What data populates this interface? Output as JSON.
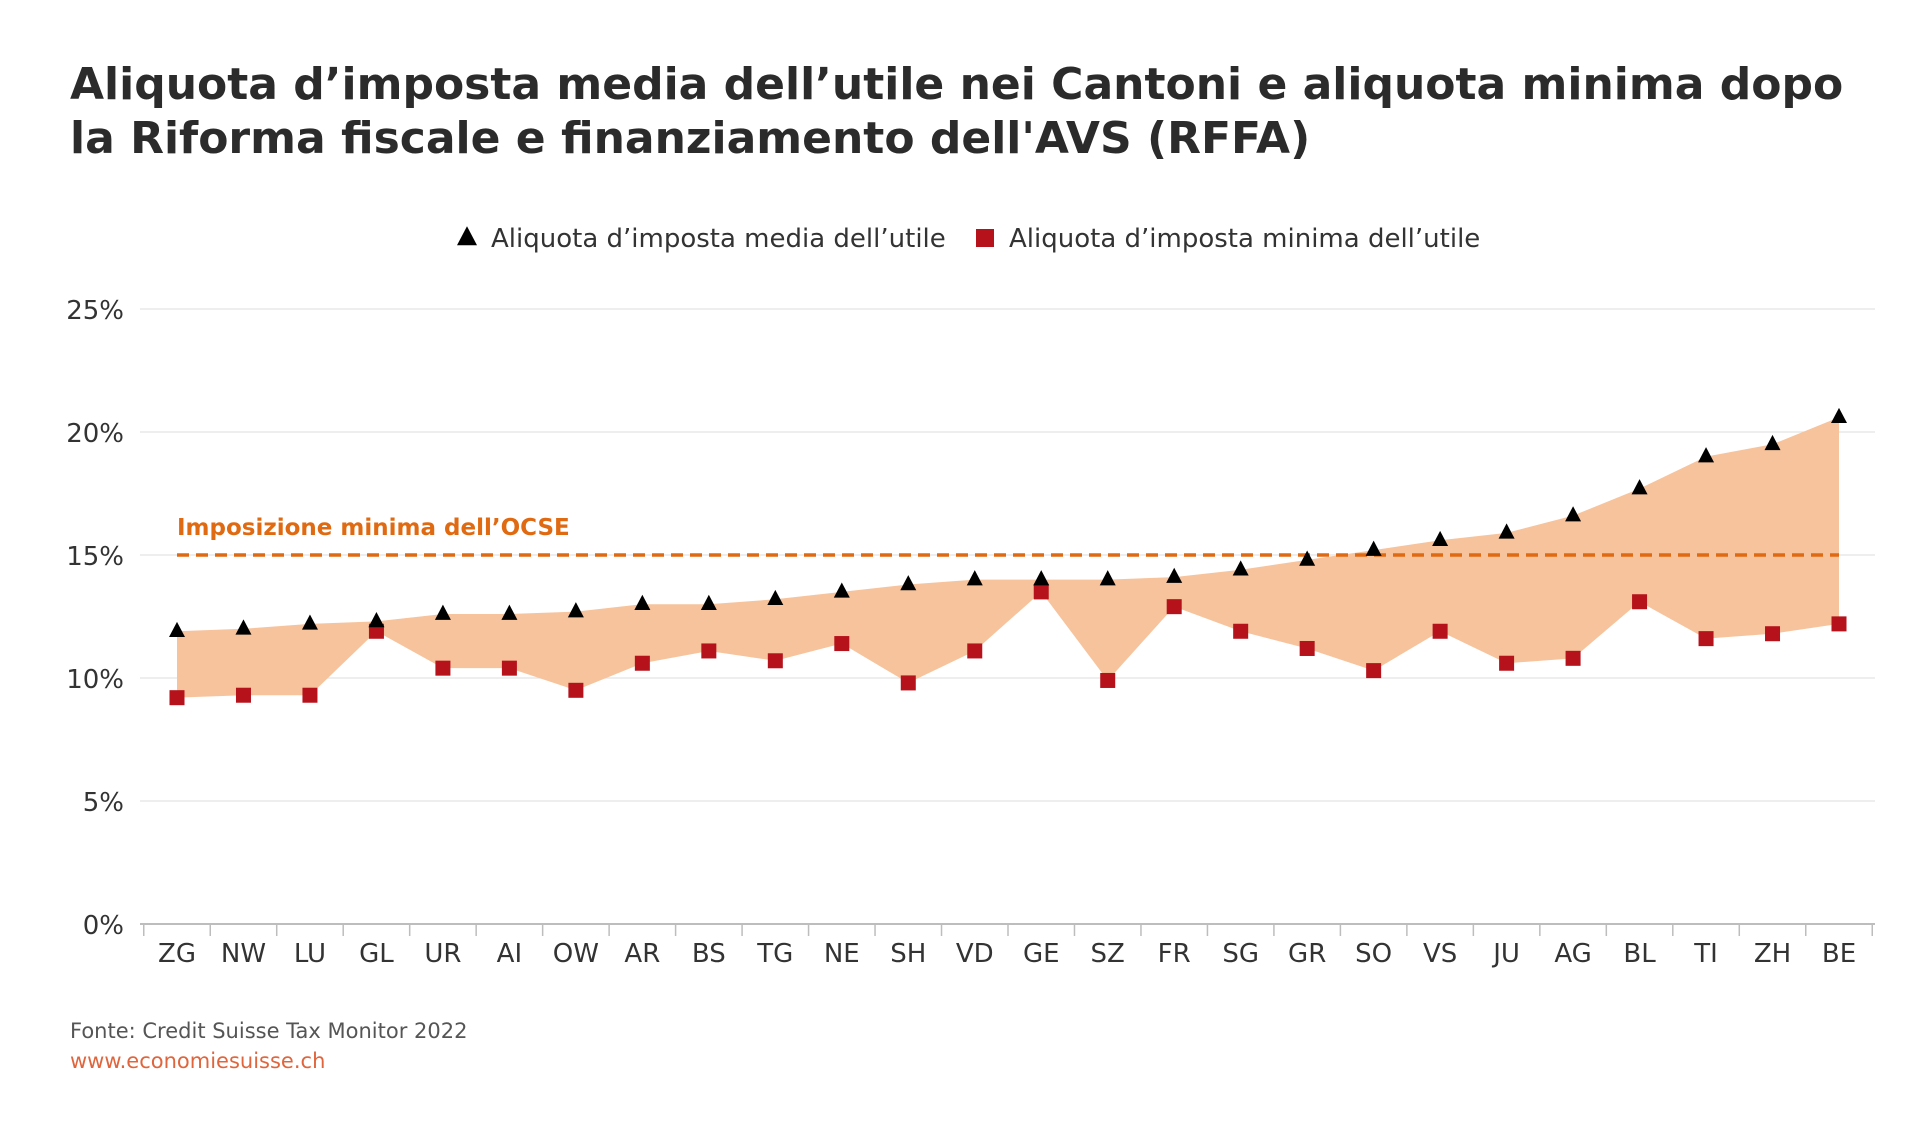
{
  "page": {
    "title": "Aliquota d’imposta media dell’utile nei Cantoni e aliquota minima dopo la Riforma fiscale e finanziamento dell'AVS (RFFA)",
    "source": "Fonte: Credit Suisse Tax Monitor 2022",
    "url": "www.economiesuisse.ch"
  },
  "chart_data": {
    "type": "scatter",
    "categories": [
      "ZG",
      "NW",
      "LU",
      "GL",
      "UR",
      "AI",
      "OW",
      "AR",
      "BS",
      "TG",
      "NE",
      "SH",
      "VD",
      "GE",
      "SZ",
      "FR",
      "SG",
      "GR",
      "SO",
      "VS",
      "JU",
      "AG",
      "BL",
      "TI",
      "ZH",
      "BE"
    ],
    "series": [
      {
        "name": "Aliquota d’imposta media dell’utile",
        "marker": "triangle",
        "color": "#000000",
        "values": [
          11.9,
          12.0,
          12.2,
          12.3,
          12.6,
          12.6,
          12.7,
          13.0,
          13.0,
          13.2,
          13.5,
          13.8,
          14.0,
          14.0,
          14.0,
          14.1,
          14.4,
          14.8,
          15.2,
          15.6,
          15.9,
          16.6,
          17.7,
          19.0,
          19.5,
          20.6
        ]
      },
      {
        "name": "Aliquota d’imposta minima dell’utile",
        "marker": "square",
        "color": "#b5121b",
        "values": [
          9.2,
          9.3,
          9.3,
          11.9,
          10.4,
          10.4,
          9.5,
          10.6,
          11.1,
          10.7,
          11.4,
          9.8,
          11.1,
          13.5,
          9.9,
          12.9,
          11.9,
          11.2,
          10.3,
          11.9,
          10.6,
          10.8,
          13.1,
          11.6,
          11.8,
          12.2
        ]
      }
    ],
    "band": {
      "between": "series",
      "color": "#f6c39c"
    },
    "reference_line": {
      "value": 15,
      "label": "Imposizione minima dell’OCSE",
      "style": "dashed",
      "color": "#e06a12"
    },
    "ylim": [
      0,
      25
    ],
    "yticks": [
      0,
      5,
      10,
      15,
      20,
      25
    ],
    "ytick_labels": [
      "0%",
      "5%",
      "10%",
      "15%",
      "20%",
      "25%"
    ],
    "grid": true,
    "legend": "top-center",
    "xlabel": "",
    "ylabel": ""
  }
}
